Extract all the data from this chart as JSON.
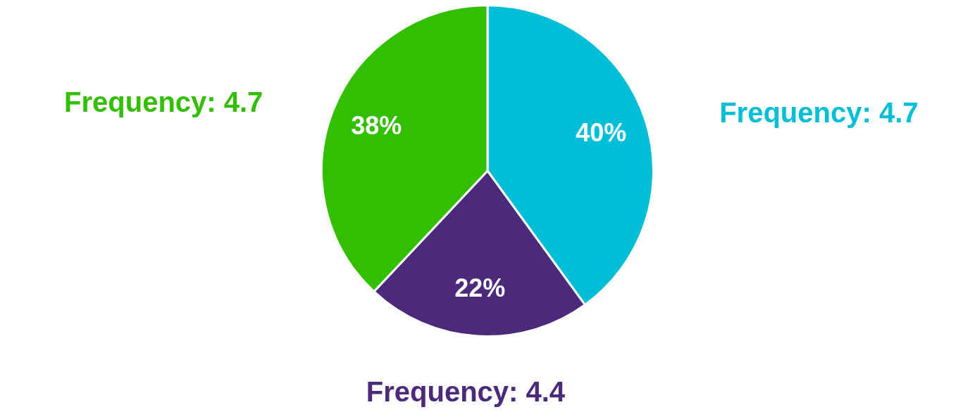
{
  "chart_data": {
    "type": "pie",
    "categories": [
      null,
      null,
      null
    ],
    "values": [
      40,
      22,
      38
    ],
    "colors": [
      "#00bed6",
      "#4b2a7b",
      "#33bf00"
    ],
    "value_labels": [
      "40%",
      "22%",
      "38%"
    ],
    "annotations": [
      "Frequency: 4.7",
      "Frequency: 4.4",
      "Frequency: 4.7"
    ],
    "legend": false
  }
}
